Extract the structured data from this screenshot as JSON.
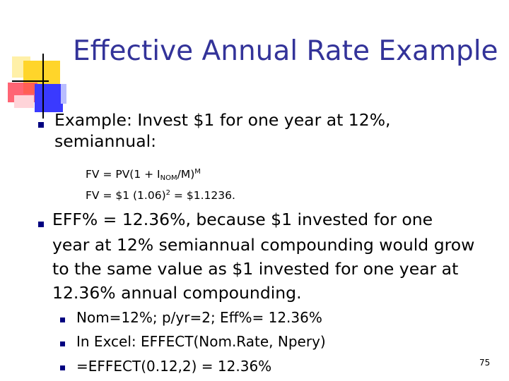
{
  "slide": {
    "title": "Effective Annual Rate Example",
    "bullet1": {
      "line1": "Example:  Invest $1 for one year at 12%,",
      "line2": "semiannual:"
    },
    "formula1": {
      "prefix": "FV = PV(1 + I",
      "sub": "NOM",
      "middle": "/M)",
      "sup": "M"
    },
    "formula2": {
      "prefix": "FV = $1 (1.06)",
      "sup": "2",
      "suffix": "  = $1.1236."
    },
    "bullet2": {
      "lines": [
        "EFF% = 12.36%, because $1 invested for one",
        "year at 12% semiannual compounding would grow",
        "to the same value as $1 invested for one year at",
        "12.36% annual compounding."
      ]
    },
    "sub_bullets": [
      "Nom=12%; p/yr=2; Eff%= 12.36%",
      "In Excel: EFFECT(Nom.Rate, Npery)",
      "=EFFECT(0.12,2) = 12.36%"
    ],
    "page_number": "75",
    "colors": {
      "title": "#333399",
      "bullet": "#000080"
    }
  }
}
